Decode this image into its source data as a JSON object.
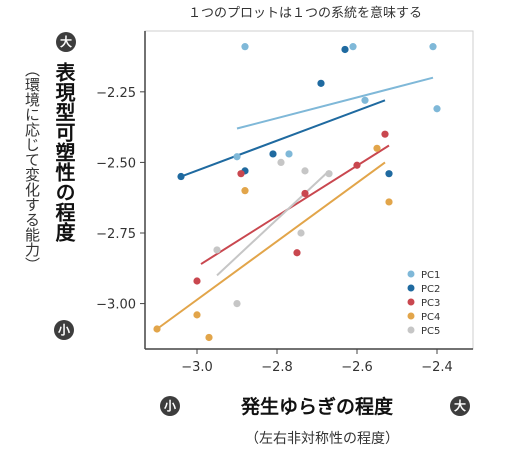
{
  "chart_data": {
    "type": "scatter",
    "title": "",
    "annotation": "１つのプロットは１つの系統を意味する",
    "xlabel": "発生ゆらぎの程度",
    "xlabel_sub": "（左右非対称性の程度）",
    "ylabel": "表現型可塑性の程度",
    "ylabel_sub": "（環境に応じて変化する能力）",
    "x_low_label": "小",
    "x_high_label": "大",
    "y_low_label": "小",
    "y_high_label": "大",
    "xlim": [
      -3.1,
      -2.36
    ],
    "ylim": [
      -3.09,
      -2.07
    ],
    "xticks": [
      -3.0,
      -2.8,
      -2.6,
      -2.4
    ],
    "yticks": [
      -2.25,
      -2.5,
      -2.75,
      -3.0
    ],
    "xtick_labels": [
      "−3.0",
      "−2.8",
      "−2.6",
      "−2.4"
    ],
    "ytick_labels": [
      "−2.25",
      "−2.50",
      "−2.75",
      "−3.00"
    ],
    "grid": false,
    "legend_position": "bottom-right",
    "series": [
      {
        "name": "PC1",
        "color": "#7fb8d8",
        "points": [
          [
            -2.88,
            -2.09
          ],
          [
            -2.61,
            -2.09
          ],
          [
            -2.41,
            -2.09
          ],
          [
            -2.58,
            -2.28
          ],
          [
            -2.77,
            -2.47
          ],
          [
            -2.9,
            -2.48
          ],
          [
            -2.4,
            -2.31
          ]
        ],
        "fit": [
          [
            -2.9,
            -2.38
          ],
          [
            -2.41,
            -2.2
          ]
        ]
      },
      {
        "name": "PC2",
        "color": "#1f6aa0",
        "points": [
          [
            -3.04,
            -2.55
          ],
          [
            -2.88,
            -2.53
          ],
          [
            -2.81,
            -2.47
          ],
          [
            -2.69,
            -2.22
          ],
          [
            -2.63,
            -2.1
          ],
          [
            -2.52,
            -2.54
          ]
        ],
        "fit": [
          [
            -3.04,
            -2.55
          ],
          [
            -2.53,
            -2.28
          ]
        ]
      },
      {
        "name": "PC3",
        "color": "#c9474f",
        "points": [
          [
            -3.0,
            -2.92
          ],
          [
            -2.89,
            -2.54
          ],
          [
            -2.75,
            -2.82
          ],
          [
            -2.73,
            -2.61
          ],
          [
            -2.6,
            -2.51
          ],
          [
            -2.53,
            -2.4
          ]
        ],
        "fit": [
          [
            -2.99,
            -2.86
          ],
          [
            -2.52,
            -2.44
          ]
        ]
      },
      {
        "name": "PC4",
        "color": "#e2a54a",
        "points": [
          [
            -3.1,
            -3.09
          ],
          [
            -3.0,
            -3.04
          ],
          [
            -2.97,
            -3.12
          ],
          [
            -2.88,
            -2.6
          ],
          [
            -2.55,
            -2.45
          ],
          [
            -2.52,
            -2.64
          ]
        ],
        "fit": [
          [
            -3.1,
            -3.09
          ],
          [
            -2.53,
            -2.5
          ]
        ]
      },
      {
        "name": "PC5",
        "color": "#c6c6c6",
        "points": [
          [
            -2.95,
            -2.81
          ],
          [
            -2.9,
            -3.0
          ],
          [
            -2.79,
            -2.5
          ],
          [
            -2.73,
            -2.53
          ],
          [
            -2.67,
            -2.54
          ],
          [
            -2.74,
            -2.75
          ]
        ],
        "fit": [
          [
            -2.95,
            -2.9
          ],
          [
            -2.67,
            -2.53
          ]
        ]
      }
    ]
  },
  "colors": {
    "badge": "#3d3d3d",
    "axis": "#444444",
    "frame": "#cfcfcf"
  }
}
